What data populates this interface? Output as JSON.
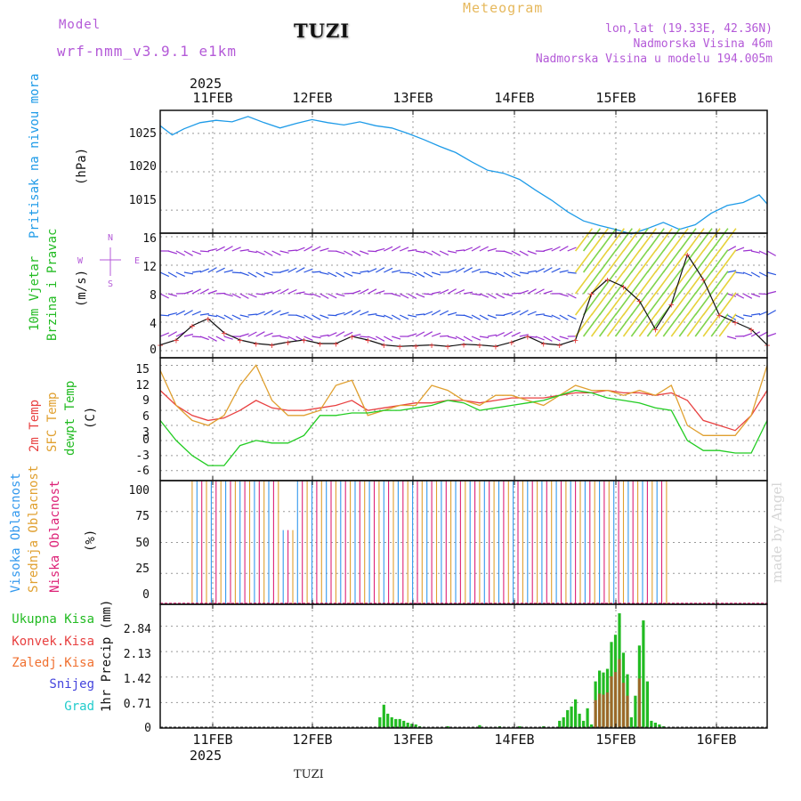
{
  "header": {
    "model_label": "Model",
    "model_name": "wrf-nmm_v3.9.1 e1km",
    "station": "TUZI",
    "product": "Meteogram",
    "lonlat": "lon,lat (19.33E, 42.36N)",
    "altitude": "Nadmorska Visina 46m",
    "model_altitude": "Nadmorska Visina u modelu 194.005m"
  },
  "footer": {
    "station": "TUZI",
    "credit": "made by Angel"
  },
  "time_axis": {
    "year": "2025",
    "days": [
      "11FEB",
      "12FEB",
      "13FEB",
      "14FEB",
      "15FEB",
      "16FEB"
    ]
  },
  "colors": {
    "pressure": "#1e9be8",
    "wind_label": "#22bb22",
    "temp2m": "#e84040",
    "sfc": "#e0a030",
    "dewpt": "#22cc22",
    "high_cloud": "#3399ee",
    "mid_cloud": "#e0a030",
    "low_cloud": "#dd2277",
    "total_precip": "#22bb22",
    "conv_precip": "#e84040",
    "frz_precip": "#f07030",
    "snow": "#4444dd",
    "hail": "#22cccc"
  },
  "panels": {
    "pressure": {
      "ylabel": "Pritisak na nivou mora",
      "unit": "(hPa)",
      "ticks": [
        "1025",
        "1020",
        "1015"
      ]
    },
    "wind": {
      "ylabel1": "10m Vjetar",
      "ylabel2": "Brzina i Pravac",
      "unit": "(m/s)",
      "ticks": [
        "16",
        "12",
        "8",
        "4",
        "0"
      ],
      "compass": [
        "N",
        "W",
        "E",
        "S"
      ]
    },
    "temp": {
      "ylabel1": "2m Temp",
      "ylabel2": "SFC Temp",
      "ylabel3": "dewpt Temp",
      "unit": "(C)",
      "ticks": [
        "15",
        "12",
        "9",
        "6",
        "3",
        "0",
        "-3",
        "-6"
      ]
    },
    "cloud": {
      "ylabel1": "Visoka Oblacnost",
      "ylabel2": "Srednja Oblacnost",
      "ylabel3": "Niska Oblacnost",
      "unit": "(%)",
      "ticks": [
        "100",
        "75",
        "50",
        "25",
        "0"
      ]
    },
    "precip": {
      "unit": "1hr Precip (mm)",
      "ticks": [
        "2.84",
        "2.13",
        "1.42",
        "0.71",
        "0"
      ],
      "legend": [
        "Ukupna Kisa",
        "Konvek.Kisa",
        "Zaledj.Kisa",
        "Snijeg",
        "Grad"
      ]
    }
  },
  "chart_data": [
    {
      "type": "line",
      "name": "pressure",
      "x_hours": [
        0,
        3,
        6,
        10,
        14,
        18,
        22,
        26,
        30,
        34,
        38,
        42,
        46,
        50,
        54,
        58,
        62,
        66,
        70,
        74,
        78,
        82,
        86,
        90,
        94,
        98,
        102,
        106,
        110,
        114,
        118,
        122,
        126,
        130,
        134,
        138,
        142,
        146,
        150,
        152
      ],
      "values": [
        1026.0,
        1024.8,
        1025.6,
        1026.4,
        1026.7,
        1026.5,
        1027.2,
        1026.4,
        1025.7,
        1026.3,
        1026.8,
        1026.4,
        1026.1,
        1026.5,
        1026.0,
        1025.7,
        1025.0,
        1024.2,
        1023.3,
        1022.5,
        1021.3,
        1020.2,
        1019.8,
        1019.0,
        1017.6,
        1016.3,
        1014.8,
        1013.6,
        1013.0,
        1012.5,
        1011.9,
        1012.6,
        1013.4,
        1012.5,
        1013.1,
        1014.6,
        1015.6,
        1016.0,
        1017.0,
        1015.8
      ],
      "ylim": [
        1012,
        1028
      ]
    },
    {
      "type": "line",
      "name": "wind_speed",
      "x_hours": [
        0,
        4,
        8,
        12,
        16,
        20,
        24,
        28,
        32,
        36,
        40,
        44,
        48,
        52,
        56,
        60,
        64,
        68,
        72,
        76,
        80,
        84,
        88,
        92,
        96,
        100,
        104,
        108,
        112,
        116,
        120,
        124,
        128,
        132,
        136,
        140,
        144,
        148,
        152
      ],
      "values": [
        0.8,
        1.5,
        3.5,
        4.5,
        2.5,
        1.5,
        1.0,
        0.8,
        1.2,
        1.5,
        1.0,
        1.0,
        2.0,
        1.5,
        0.8,
        0.6,
        0.7,
        0.8,
        0.6,
        0.9,
        0.8,
        0.6,
        1.2,
        2.0,
        1.0,
        0.8,
        1.5,
        8.0,
        10.0,
        9.0,
        7.0,
        3.0,
        6.5,
        13.5,
        10.0,
        5.0,
        4.0,
        3.0,
        0.8
      ],
      "ylim": [
        -1,
        16.5
      ]
    },
    {
      "type": "line",
      "name": "temperature",
      "x_hours": [
        0,
        4,
        8,
        12,
        16,
        20,
        24,
        28,
        32,
        36,
        40,
        44,
        48,
        52,
        56,
        60,
        64,
        68,
        72,
        76,
        80,
        84,
        88,
        92,
        96,
        100,
        104,
        108,
        112,
        116,
        120,
        124,
        128,
        132,
        136,
        140,
        144,
        148,
        152
      ],
      "series": [
        {
          "name": "2m Temp",
          "values": [
            10,
            7,
            5,
            4,
            4.5,
            6,
            8,
            6.5,
            6,
            6,
            6.5,
            7,
            8,
            6,
            6.5,
            7,
            7.5,
            7.5,
            8,
            8,
            7.5,
            8,
            8.5,
            8.5,
            8.5,
            9,
            9.5,
            9.5,
            10,
            9.5,
            9.5,
            9,
            9.5,
            8,
            4,
            3,
            2,
            5,
            10
          ]
        },
        {
          "name": "SFC Temp",
          "values": [
            14,
            7,
            4,
            3,
            5,
            11,
            15,
            8,
            5,
            5,
            6,
            11,
            12,
            5,
            6,
            7,
            7,
            11,
            10,
            8,
            7,
            9,
            9,
            8,
            7,
            9,
            11,
            10,
            10,
            9,
            10,
            9,
            11,
            3,
            1,
            1,
            1,
            5,
            15
          ]
        },
        {
          "name": "dewpt Temp",
          "values": [
            4,
            0,
            -3,
            -5,
            -5,
            -1,
            0,
            -0.5,
            -0.5,
            1,
            5,
            5,
            5.5,
            5.5,
            6,
            6,
            6.5,
            7,
            8,
            7.5,
            6,
            6.5,
            7,
            7.5,
            8,
            9,
            10,
            9.5,
            8.5,
            8,
            7.5,
            6.5,
            6,
            0,
            -2,
            -2,
            -2.5,
            -2.5,
            4
          ]
        }
      ],
      "ylim": [
        -8,
        16.5
      ]
    },
    {
      "type": "bar",
      "name": "precipitation",
      "x_hours": [
        55,
        56,
        57,
        58,
        59,
        60,
        61,
        62,
        63,
        64,
        65,
        72,
        80,
        85,
        90,
        96,
        100,
        101,
        102,
        103,
        104,
        105,
        106,
        107,
        108,
        109,
        110,
        111,
        112,
        113,
        114,
        115,
        116,
        117,
        118,
        119,
        120,
        121,
        122,
        123,
        124,
        125,
        126
      ],
      "values": [
        0.3,
        0.65,
        0.4,
        0.3,
        0.25,
        0.25,
        0.2,
        0.15,
        0.12,
        0.1,
        0.05,
        0.05,
        0.08,
        0.05,
        0.05,
        0.05,
        0.2,
        0.3,
        0.5,
        0.6,
        0.8,
        0.4,
        0.2,
        0.55,
        0.1,
        1.3,
        1.6,
        1.55,
        1.65,
        2.4,
        2.6,
        3.2,
        2.1,
        1.5,
        0.3,
        0.9,
        2.3,
        3.0,
        1.3,
        0.2,
        0.15,
        0.1,
        0.05
      ],
      "ylim": [
        0,
        3.45
      ]
    }
  ]
}
